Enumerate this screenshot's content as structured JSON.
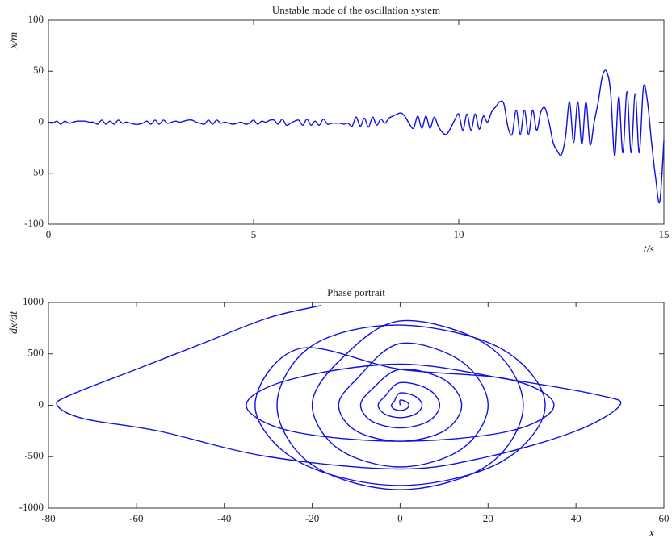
{
  "chart_data": [
    {
      "type": "line",
      "title": "Unstable mode of the oscillation system",
      "xlabel": "t/s",
      "ylabel": "x/m",
      "color": "#1010e0",
      "xlim": [
        0,
        15
      ],
      "ylim": [
        -100,
        100
      ],
      "xticks": [
        0,
        5,
        10,
        15
      ],
      "yticks": [
        -100,
        -50,
        0,
        50,
        100
      ],
      "x": [
        0,
        0.1,
        0.2,
        0.3,
        0.4,
        0.5,
        0.6,
        0.7,
        0.8,
        0.9,
        1,
        1.1,
        1.2,
        1.3,
        1.4,
        1.5,
        1.6,
        1.7,
        1.8,
        1.9,
        2,
        2.1,
        2.2,
        2.3,
        2.4,
        2.5,
        2.6,
        2.7,
        2.8,
        2.9,
        3,
        3.1,
        3.2,
        3.3,
        3.4,
        3.5,
        3.6,
        3.7,
        3.8,
        3.9,
        4,
        4.1,
        4.2,
        4.3,
        4.4,
        4.5,
        4.6,
        4.7,
        4.8,
        4.9,
        5,
        5.1,
        5.2,
        5.3,
        5.4,
        5.5,
        5.6,
        5.7,
        5.8,
        5.9,
        6,
        6.1,
        6.2,
        6.3,
        6.4,
        6.5,
        6.6,
        6.7,
        6.8,
        6.9,
        7,
        7.1,
        7.2,
        7.3,
        7.4,
        7.5,
        7.6,
        7.7,
        7.8,
        7.9,
        8,
        8.1,
        8.2,
        8.3,
        8.4,
        8.5,
        8.6,
        8.7,
        8.8,
        8.9,
        9,
        9.1,
        9.2,
        9.3,
        9.4,
        9.5,
        9.6,
        9.7,
        9.8,
        9.9,
        10,
        10.1,
        10.2,
        10.3,
        10.4,
        10.5,
        10.6,
        10.7,
        10.8,
        10.9,
        11,
        11.1,
        11.2,
        11.3,
        11.4,
        11.5,
        11.6,
        11.7,
        11.8,
        11.9,
        12,
        12.1,
        12.2,
        12.3,
        12.4,
        12.5,
        12.6,
        12.7,
        12.8,
        12.9,
        13,
        13.1,
        13.2,
        13.3,
        13.4,
        13.5,
        13.6,
        13.7,
        13.8,
        13.9,
        14,
        14.1,
        14.2,
        14.3,
        14.4,
        14.5,
        14.6,
        14.7,
        14.8,
        14.9,
        15
      ],
      "values": [
        0,
        -1,
        1,
        -2,
        1,
        -1,
        0,
        1,
        1,
        1,
        0,
        0,
        -2,
        2,
        -2,
        1,
        -2,
        2,
        -1,
        0,
        -1,
        -2,
        -2,
        -1,
        1,
        -2,
        2,
        -2,
        2,
        -1,
        0,
        1,
        0,
        1,
        2,
        2,
        0,
        -1,
        -2,
        2,
        -2,
        2,
        -1,
        0,
        -1,
        -2,
        -1,
        0,
        -2,
        -1,
        2,
        -2,
        1,
        0,
        2,
        2,
        -2,
        3,
        -3,
        -1,
        1,
        2,
        -3,
        3,
        -3,
        1,
        -3,
        3,
        -2,
        -1,
        -1,
        -1,
        -2,
        -1,
        -4,
        5,
        -4,
        4,
        -5,
        5,
        -3,
        3,
        -1,
        4,
        6,
        8,
        9,
        5,
        -2,
        -6,
        6,
        -6,
        6,
        -6,
        5,
        -4,
        -10,
        -12,
        -6,
        2,
        8,
        -8,
        8,
        -8,
        8,
        -7,
        6,
        0,
        10,
        15,
        20,
        18,
        -5,
        -12,
        12,
        -12,
        12,
        -12,
        12,
        -8,
        10,
        14,
        0,
        -20,
        -28,
        -32,
        -15,
        20,
        -20,
        20,
        -22,
        20,
        -22,
        0,
        20,
        45,
        50,
        30,
        -33,
        25,
        -30,
        30,
        -30,
        28,
        -30,
        34,
        20,
        -20,
        -55,
        -78,
        -18
      ]
    },
    {
      "type": "line",
      "title": "Phase portrait",
      "xlabel": "x",
      "ylabel": "dx/dt",
      "color": "#1010e0",
      "xlim": [
        -80,
        60
      ],
      "ylim": [
        -1000,
        1000
      ],
      "xticks": [
        -80,
        -60,
        -40,
        -20,
        0,
        20,
        40,
        60
      ],
      "yticks": [
        -1000,
        -500,
        0,
        500,
        1000
      ],
      "x": [
        0,
        0,
        1.4,
        2,
        1.4,
        0,
        -1.4,
        -2,
        -1.4,
        0,
        3.5,
        5,
        3.5,
        0,
        -3.5,
        -5,
        -3.5,
        0,
        6.4,
        9,
        6.4,
        0,
        -6.4,
        -9,
        -6.4,
        0,
        10,
        14,
        10,
        0,
        -10,
        -14,
        -10,
        0,
        14,
        20,
        14,
        0,
        -14,
        -20,
        -14,
        0,
        20,
        28,
        20,
        0,
        -20,
        -28,
        -20,
        0,
        23,
        33,
        23,
        0,
        -23,
        -33,
        -23,
        0,
        25,
        35,
        25,
        0,
        -25,
        -35,
        -25,
        0,
        25,
        45,
        50,
        40,
        20,
        0,
        -30,
        -55,
        -72,
        -78,
        -75,
        -60,
        -45,
        -30,
        -18
      ],
      "values": [
        0,
        50,
        35,
        0,
        -35,
        -50,
        -35,
        0,
        35,
        120,
        85,
        0,
        -85,
        -120,
        -85,
        0,
        85,
        220,
        156,
        0,
        -156,
        -220,
        -156,
        0,
        156,
        350,
        250,
        0,
        -250,
        -350,
        -250,
        0,
        250,
        600,
        425,
        0,
        -425,
        -600,
        -425,
        0,
        425,
        820,
        580,
        0,
        -580,
        -820,
        -580,
        0,
        580,
        780,
        550,
        0,
        -550,
        -780,
        -550,
        0,
        550,
        350,
        250,
        0,
        -250,
        -350,
        -250,
        0,
        250,
        400,
        250,
        100,
        0,
        -250,
        -500,
        -620,
        -500,
        -250,
        -130,
        0,
        100,
        350,
        600,
        850,
        970
      ]
    }
  ]
}
